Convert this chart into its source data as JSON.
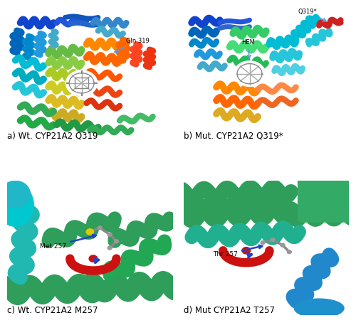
{
  "figure_bg": "#ffffff",
  "panel_labels": [
    "a) Wt. CYP21A2 Q319",
    "b) Mut. CYP21A2 Q319*",
    "c) Wt. CYP21A2 M257",
    "d) Mut CYP21A2 T257"
  ],
  "panel_label_fontsize": 8.5,
  "panel_label_bold": false,
  "figsize": [
    5.0,
    4.71
  ],
  "dpi": 100,
  "panel_a_bg": [
    255,
    255,
    255
  ],
  "panel_b_bg": [
    255,
    255,
    255
  ],
  "panel_c_bg": [
    160,
    210,
    200
  ],
  "panel_d_bg": [
    155,
    200,
    185
  ],
  "annotation_fontsize": 6.5,
  "arrow_color": "#5b9bd5",
  "arrow_color_cd": "#2060a0"
}
